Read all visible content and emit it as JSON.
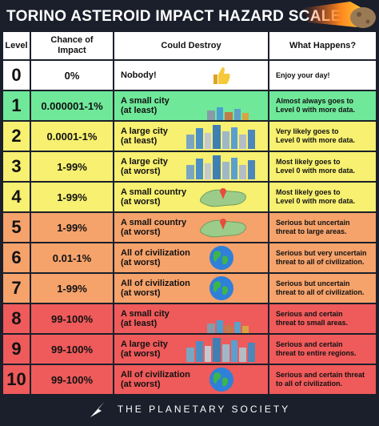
{
  "title": "TORINO ASTEROID IMPACT HAZARD SCALE",
  "headers": {
    "level": "Level",
    "chance": "Chance of\nImpact",
    "destroy": "Could Destroy",
    "what": "What Happens?"
  },
  "rows": [
    {
      "level": "0",
      "chance": "0%",
      "destroy": "Nobody!",
      "what": "Enjoy your day!",
      "color": "#ffffff",
      "icon": "thumbs-up-icon"
    },
    {
      "level": "1",
      "chance": "0.000001-1%",
      "destroy": "A small city\n(at least)",
      "what": "Almost always goes to\nLevel 0 with more data.",
      "color": "#6fe89a",
      "icon": "small-city-icon"
    },
    {
      "level": "2",
      "chance": "0.0001-1%",
      "destroy": "A large city\n(at least)",
      "what": "Very likely goes to\nLevel 0 with more data.",
      "color": "#f7f070",
      "icon": "large-city-icon"
    },
    {
      "level": "3",
      "chance": "1-99%",
      "destroy": "A large city\n(at worst)",
      "what": "Most likely goes to\nLevel 0 with more data.",
      "color": "#f7f070",
      "icon": "large-city-icon"
    },
    {
      "level": "4",
      "chance": "1-99%",
      "destroy": "A small country\n(at worst)",
      "what": "Most likely goes to\nLevel 0 with more data.",
      "color": "#f7f070",
      "icon": "country-map-icon"
    },
    {
      "level": "5",
      "chance": "1-99%",
      "destroy": "A small country\n(at worst)",
      "what": "Serious but uncertain\nthreat to large areas.",
      "color": "#f5a26b",
      "icon": "country-map-icon"
    },
    {
      "level": "6",
      "chance": "0.01-1%",
      "destroy": "All of civilization\n(at worst)",
      "what": "Serious but very uncertain\nthreat to all of civilization.",
      "color": "#f5a26b",
      "icon": "earth-globe-icon"
    },
    {
      "level": "7",
      "chance": "1-99%",
      "destroy": "All of civilization\n(at worst)",
      "what": "Serious but uncertain\nthreat to all of civilization.",
      "color": "#f5a26b",
      "icon": "earth-globe-icon"
    },
    {
      "level": "8",
      "chance": "99-100%",
      "destroy": "A small city\n(at least)",
      "what": "Serious and certain\nthreat to small areas.",
      "color": "#ef5a5a",
      "icon": "small-city-icon"
    },
    {
      "level": "9",
      "chance": "99-100%",
      "destroy": "A large city\n(at worst)",
      "what": "Serious and certain\nthreat to entire regions.",
      "color": "#ef5a5a",
      "icon": "large-city-icon"
    },
    {
      "level": "10",
      "chance": "99-100%",
      "destroy": "All of civilization\n(at worst)",
      "what": "Serious and certain threat\nto all of civilization.",
      "color": "#ef5a5a",
      "icon": "earth-globe-icon"
    }
  ],
  "footer": "THE PLANETARY SOCIETY"
}
